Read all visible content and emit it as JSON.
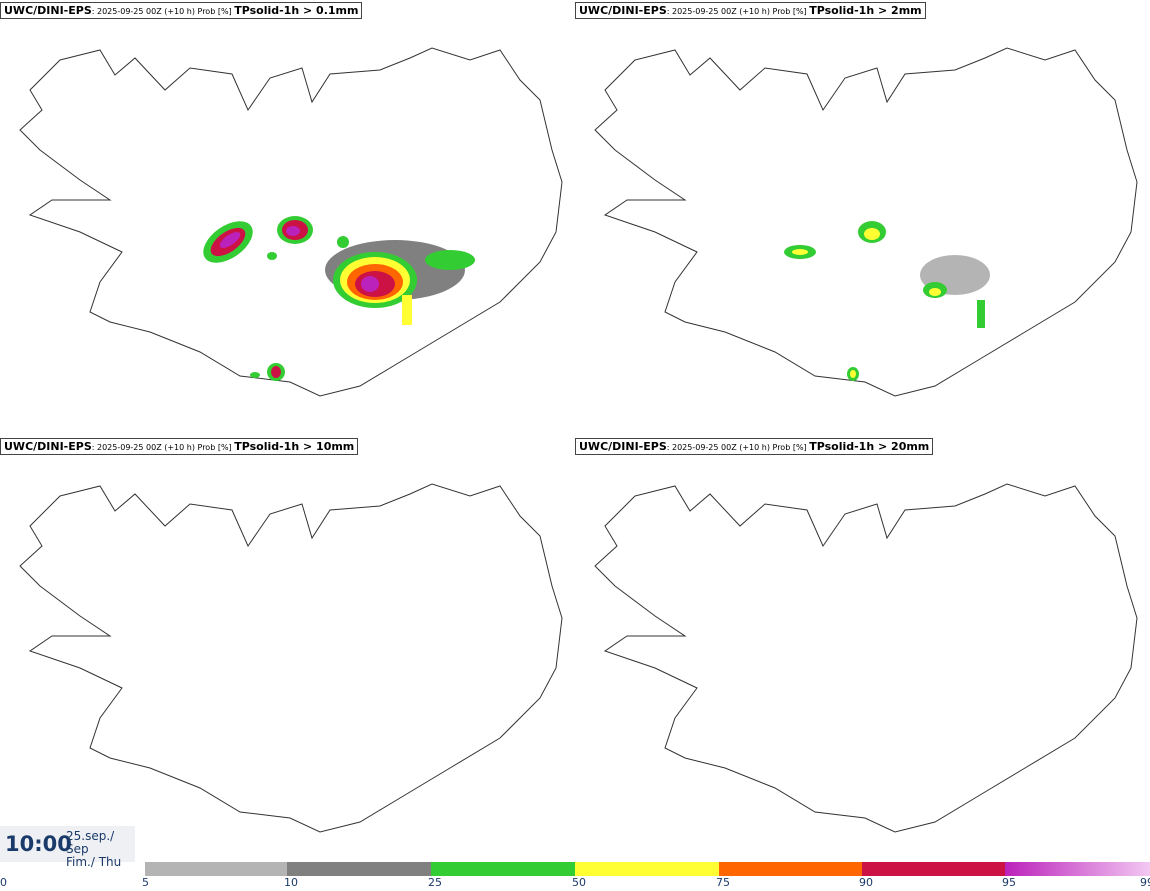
{
  "panels": [
    {
      "model": "UWC/DINI-EPS",
      "info": ": 2025-09-25 00Z (+10 h) Prob [%] ",
      "param": "TPsolid-1h > 0.1mm"
    },
    {
      "model": "UWC/DINI-EPS",
      "info": ": 2025-09-25 00Z (+10 h) Prob [%] ",
      "param": "TPsolid-1h > 2mm"
    },
    {
      "model": "UWC/DINI-EPS",
      "info": ": 2025-09-25 00Z (+10 h) Prob [%] ",
      "param": "TPsolid-1h > 10mm"
    },
    {
      "model": "UWC/DINI-EPS",
      "info": ": 2025-09-25 00Z (+10 h) Prob [%] ",
      "param": "TPsolid-1h > 20mm"
    }
  ],
  "timebox": {
    "time": "10:00",
    "date_line1": "25.sep./ Sep",
    "date_line2": "Fim./ Thu"
  },
  "colorbar": {
    "ticks": [
      "0",
      "5",
      "10",
      "25",
      "50",
      "75",
      "90",
      "95",
      "99"
    ],
    "colors": [
      "#b4b4b4",
      "#808080",
      "#33cc33",
      "#ffff33",
      "#ff6600",
      "#cc1144",
      "#bb22bb"
    ]
  }
}
